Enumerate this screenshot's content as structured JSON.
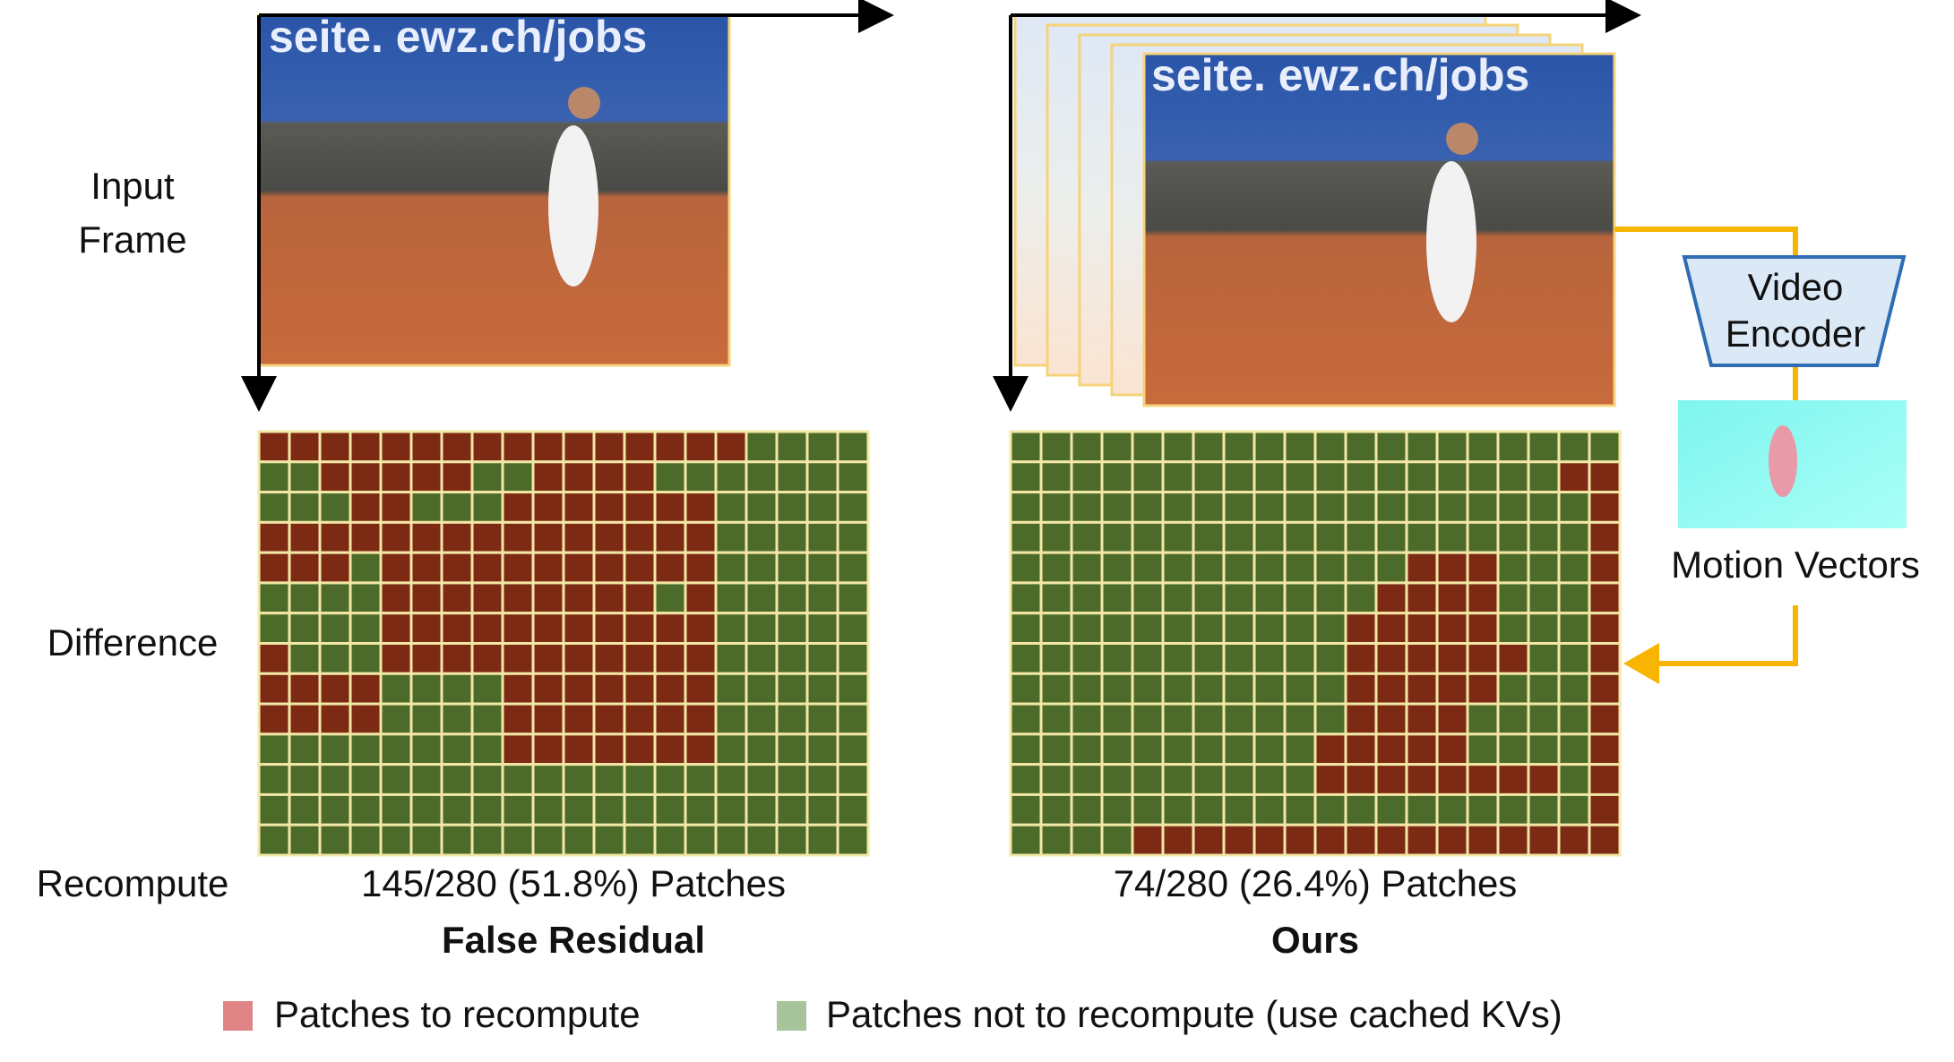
{
  "labels": {
    "input_frame": [
      "Input",
      "Frame"
    ],
    "difference": "Difference",
    "recompute": "Recompute",
    "video_encoder": [
      "Video",
      "Encoder"
    ],
    "motion_vectors": "Motion Vectors"
  },
  "methods": [
    {
      "count": "145/280 (51.8%) Patches",
      "name": "False Residual"
    },
    {
      "count": "74/280 (26.4%) Patches",
      "name": "Ours"
    }
  ],
  "legend": [
    "Patches to recompute",
    "Patches not to recompute (use cached KVs)"
  ]
}
